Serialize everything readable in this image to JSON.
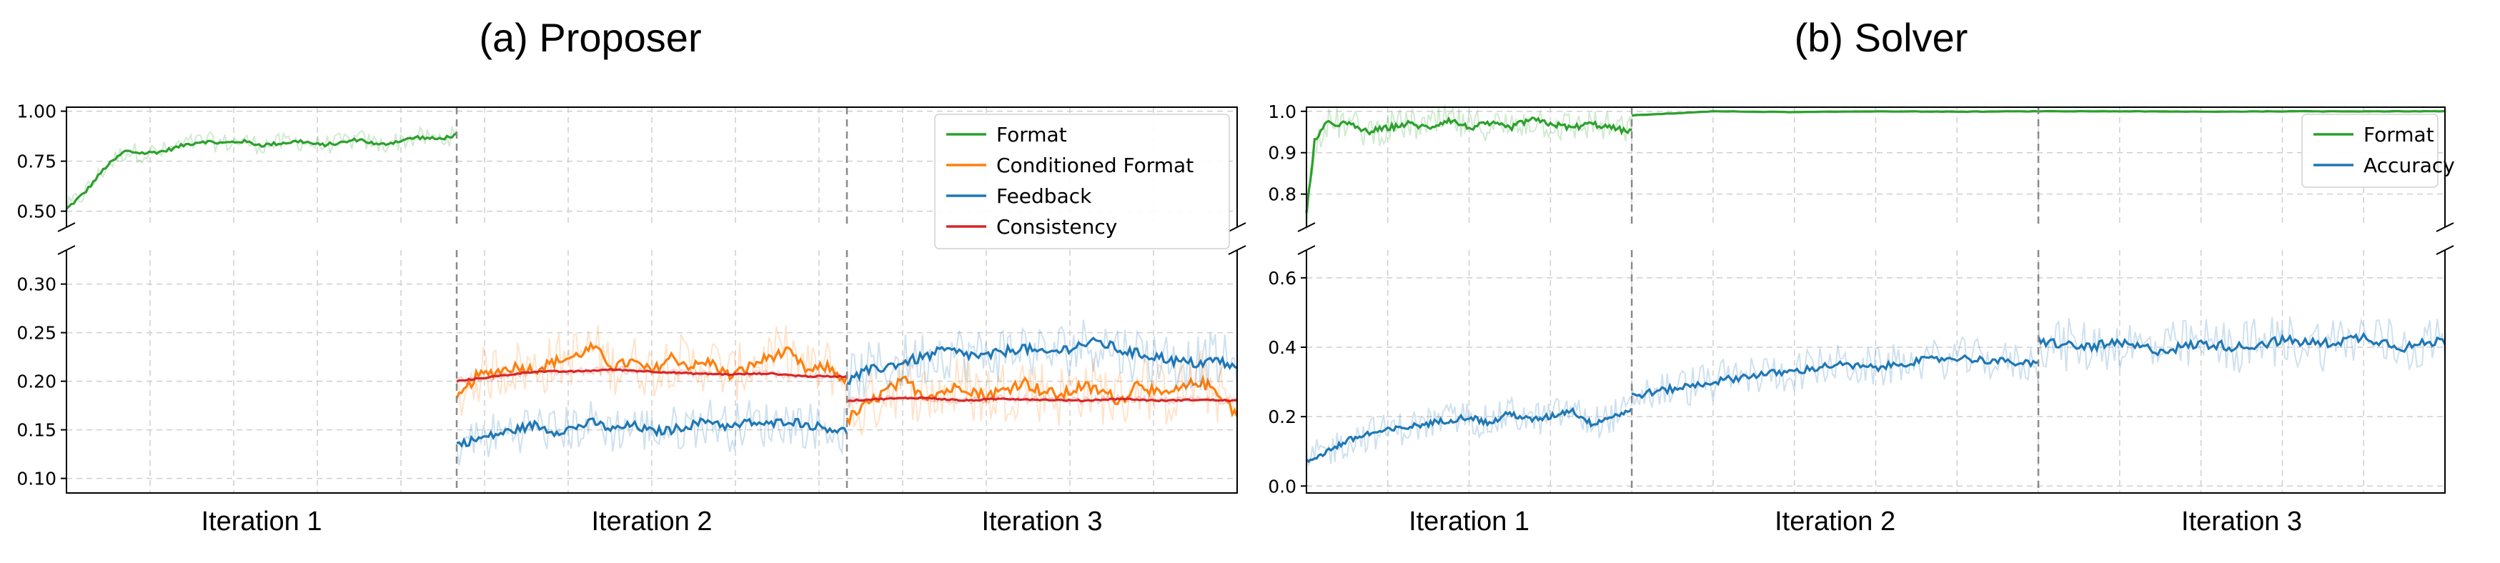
{
  "chart_data": [
    {
      "type": "line",
      "title": "(a) Proposer",
      "x_segments": [
        "Iteration 1",
        "Iteration 2",
        "Iteration 3"
      ],
      "upper_panel": {
        "ylim": [
          0.42,
          1.02
        ],
        "yticks": [
          "1.00",
          "0.75",
          "0.50"
        ],
        "ytick_values": [
          1.0,
          0.75,
          0.5
        ]
      },
      "lower_panel": {
        "ylim": [
          0.085,
          0.335
        ],
        "yticks": [
          "0.30",
          "0.25",
          "0.20",
          "0.15",
          "0.10"
        ],
        "ytick_values": [
          0.3,
          0.25,
          0.2,
          0.15,
          0.1
        ]
      },
      "legend": {
        "placement": "top-right",
        "entries": [
          "Format",
          "Conditioned Format",
          "Feedback",
          "Consistency"
        ]
      },
      "series": [
        {
          "name": "Format",
          "color": "#2ca02c",
          "panel": "upper",
          "segments": [
            {
              "x": [
                0,
                0.05,
                0.1,
                0.15,
                0.2,
                0.25,
                0.3,
                0.35,
                0.4,
                0.45,
                0.5,
                0.55,
                0.6,
                0.65,
                0.7,
                0.75,
                0.8,
                0.85,
                0.9,
                0.95,
                1.0
              ],
              "y": [
                0.51,
                0.6,
                0.72,
                0.8,
                0.79,
                0.8,
                0.83,
                0.85,
                0.84,
                0.85,
                0.83,
                0.84,
                0.85,
                0.83,
                0.84,
                0.86,
                0.83,
                0.85,
                0.87,
                0.86,
                0.88
              ],
              "noise": 0.05
            }
          ]
        },
        {
          "name": "Conditioned Format",
          "color": "#ff7f0e",
          "panel": "lower",
          "segments": [
            {
              "x": [
                1.0,
                1.05,
                1.1,
                1.15,
                1.2,
                1.25,
                1.3,
                1.35,
                1.4,
                1.45,
                1.5,
                1.55,
                1.6,
                1.65,
                1.7,
                1.75,
                1.8,
                1.85,
                1.9,
                1.95,
                2.0
              ],
              "y": [
                0.18,
                0.205,
                0.21,
                0.215,
                0.212,
                0.22,
                0.225,
                0.235,
                0.215,
                0.22,
                0.21,
                0.225,
                0.215,
                0.22,
                0.205,
                0.215,
                0.225,
                0.23,
                0.21,
                0.215,
                0.2
              ],
              "noise": 0.03
            },
            {
              "x": [
                2.0,
                2.05,
                2.1,
                2.15,
                2.2,
                2.25,
                2.3,
                2.35,
                2.4,
                2.45,
                2.5,
                2.55,
                2.6,
                2.65,
                2.7,
                2.75,
                2.8,
                2.85,
                2.9,
                2.95,
                3.0
              ],
              "y": [
                0.16,
                0.175,
                0.19,
                0.2,
                0.185,
                0.19,
                0.195,
                0.185,
                0.19,
                0.2,
                0.19,
                0.185,
                0.195,
                0.19,
                0.18,
                0.2,
                0.185,
                0.19,
                0.2,
                0.19,
                0.165
              ],
              "noise": 0.035
            }
          ]
        },
        {
          "name": "Feedback",
          "color": "#1f77b4",
          "panel": "lower",
          "segments": [
            {
              "x": [
                1.0,
                1.05,
                1.1,
                1.15,
                1.2,
                1.25,
                1.3,
                1.35,
                1.4,
                1.45,
                1.5,
                1.55,
                1.6,
                1.65,
                1.7,
                1.75,
                1.8,
                1.85,
                1.9,
                1.95,
                2.0
              ],
              "y": [
                0.135,
                0.14,
                0.145,
                0.15,
                0.155,
                0.148,
                0.152,
                0.158,
                0.15,
                0.155,
                0.148,
                0.15,
                0.155,
                0.16,
                0.152,
                0.158,
                0.155,
                0.16,
                0.155,
                0.152,
                0.148
              ],
              "noise": 0.025
            },
            {
              "x": [
                2.0,
                2.05,
                2.1,
                2.15,
                2.2,
                2.25,
                2.3,
                2.35,
                2.4,
                2.45,
                2.5,
                2.55,
                2.6,
                2.65,
                2.7,
                2.75,
                2.8,
                2.85,
                2.9,
                2.95,
                3.0
              ],
              "y": [
                0.2,
                0.21,
                0.215,
                0.22,
                0.225,
                0.232,
                0.228,
                0.225,
                0.23,
                0.235,
                0.228,
                0.232,
                0.238,
                0.24,
                0.232,
                0.228,
                0.225,
                0.22,
                0.218,
                0.222,
                0.212
              ],
              "noise": 0.03
            }
          ]
        },
        {
          "name": "Consistency",
          "color": "#d62728",
          "panel": "lower",
          "segments": [
            {
              "x": [
                1.0,
                1.1,
                1.2,
                1.3,
                1.4,
                1.5,
                1.6,
                1.7,
                1.8,
                1.9,
                2.0
              ],
              "y": [
                0.2,
                0.205,
                0.21,
                0.21,
                0.212,
                0.21,
                0.208,
                0.207,
                0.208,
                0.205,
                0.205
              ],
              "noise": 0.004
            },
            {
              "x": [
                2.0,
                2.1,
                2.2,
                2.3,
                2.4,
                2.5,
                2.6,
                2.7,
                2.8,
                2.9,
                3.0
              ],
              "y": [
                0.18,
                0.182,
                0.183,
                0.18,
                0.182,
                0.181,
                0.18,
                0.182,
                0.18,
                0.181,
                0.18
              ],
              "noise": 0.004
            }
          ]
        }
      ]
    },
    {
      "type": "line",
      "title": "(b) Solver",
      "x_segments": [
        "Iteration 1",
        "Iteration 2",
        "Iteration 3"
      ],
      "segment_bounds": [
        0.0,
        0.8,
        1.8,
        2.8
      ],
      "upper_panel": {
        "ylim": [
          0.72,
          1.01
        ],
        "yticks": [
          "1.0",
          "0.9",
          "0.8"
        ],
        "ytick_values": [
          1.0,
          0.9,
          0.8
        ]
      },
      "lower_panel": {
        "ylim": [
          -0.02,
          0.68
        ],
        "yticks": [
          "0.6",
          "0.4",
          "0.2",
          "0.0"
        ],
        "ytick_values": [
          0.6,
          0.4,
          0.2,
          0.0
        ]
      },
      "legend": {
        "placement": "top-right",
        "entries": [
          "Format",
          "Accuracy"
        ]
      },
      "series": [
        {
          "name": "Format",
          "color": "#2ca02c",
          "panel": "upper",
          "segments": [
            {
              "x": [
                0.0,
                0.02,
                0.05,
                0.1,
                0.15,
                0.2,
                0.25,
                0.3,
                0.35,
                0.4,
                0.45,
                0.5,
                0.55,
                0.6,
                0.65,
                0.7,
                0.75,
                0.8
              ],
              "y": [
                0.75,
                0.93,
                0.97,
                0.97,
                0.95,
                0.96,
                0.97,
                0.96,
                0.98,
                0.96,
                0.97,
                0.96,
                0.98,
                0.97,
                0.96,
                0.97,
                0.96,
                0.95
              ],
              "noise": 0.04
            },
            {
              "x": [
                0.8,
                0.9,
                1.0,
                1.2,
                1.4,
                1.6,
                1.8,
                2.0,
                2.2,
                2.4,
                2.6,
                2.8
              ],
              "y": [
                0.99,
                0.995,
                1.0,
                0.998,
                1.0,
                0.999,
                1.0,
                1.0,
                0.999,
                1.0,
                1.0,
                1.0
              ],
              "noise": 0.003
            }
          ]
        },
        {
          "name": "Accuracy",
          "color": "#1f77b4",
          "panel": "lower",
          "segments": [
            {
              "x": [
                0.0,
                0.05,
                0.1,
                0.15,
                0.2,
                0.25,
                0.3,
                0.35,
                0.4,
                0.45,
                0.5,
                0.55,
                0.6,
                0.65,
                0.7,
                0.75,
                0.8
              ],
              "y": [
                0.07,
                0.1,
                0.13,
                0.15,
                0.16,
                0.17,
                0.18,
                0.19,
                0.2,
                0.18,
                0.21,
                0.19,
                0.2,
                0.22,
                0.18,
                0.2,
                0.22
              ],
              "noise": 0.05
            },
            {
              "x": [
                0.8,
                0.9,
                1.0,
                1.1,
                1.2,
                1.3,
                1.4,
                1.5,
                1.6,
                1.7,
                1.8
              ],
              "y": [
                0.26,
                0.28,
                0.3,
                0.32,
                0.33,
                0.35,
                0.34,
                0.36,
                0.37,
                0.36,
                0.35
              ],
              "noise": 0.06
            },
            {
              "x": [
                1.8,
                1.9,
                2.0,
                2.1,
                2.2,
                2.3,
                2.4,
                2.5,
                2.6,
                2.7,
                2.8
              ],
              "y": [
                0.42,
                0.4,
                0.41,
                0.39,
                0.41,
                0.4,
                0.42,
                0.41,
                0.43,
                0.4,
                0.42
              ],
              "noise": 0.08
            }
          ]
        }
      ]
    }
  ]
}
